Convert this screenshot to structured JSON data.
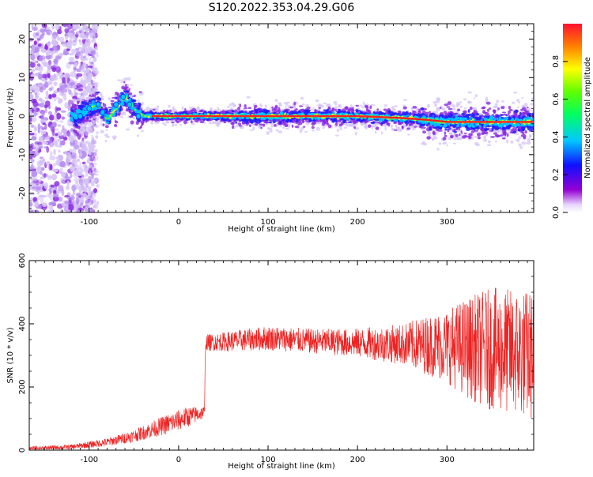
{
  "title": "S120.2022.353.04.29.G06",
  "colors": {
    "snr_line": "#ee2222",
    "band_core": "#ff2020",
    "band_inner": "#00c8ff",
    "band_mid": "#2020ff",
    "band_outer": "#8a2be2",
    "band_halo": "#d6c4f5"
  },
  "chart_data": [
    {
      "type": "heatmap",
      "title": "",
      "xlabel": "Height of straight line (km)",
      "ylabel": "Frequency (Hz)",
      "xlim": [
        -167,
        397
      ],
      "ylim": [
        -25,
        24
      ],
      "xticks": [
        -100,
        0,
        100,
        200,
        300
      ],
      "yticks": [
        -20,
        -10,
        0,
        10,
        20
      ],
      "colorbar": {
        "label": "Normalized spectral amplitude",
        "range": [
          0,
          1
        ],
        "ticks": [
          "0.0",
          "0.2",
          "0.4",
          "0.6",
          "0.8"
        ],
        "colormap": "rainbow (purple → blue → cyan → green → yellow → red)"
      },
      "ridge": {
        "description": "dominant frequency ridge vs height",
        "x": [
          -115,
          -100,
          -90,
          -80,
          -70,
          -60,
          -50,
          -40,
          -30,
          -20,
          0,
          50,
          100,
          150,
          200,
          250,
          280,
          300,
          350,
          395
        ],
        "y": [
          0,
          2,
          3,
          -1,
          2,
          5,
          2,
          0,
          0,
          0,
          0,
          0,
          0,
          0,
          0,
          -0.5,
          -1,
          -1.5,
          -1.5,
          -1.5
        ]
      }
    },
    {
      "type": "line",
      "title": "",
      "xlabel": "Height of straight line (km)",
      "ylabel": "SNR (10 * v/v)",
      "xlim": [
        -167,
        397
      ],
      "ylim": [
        0,
        600
      ],
      "xticks": [
        -100,
        0,
        100,
        200,
        300
      ],
      "yticks": [
        0,
        200,
        400,
        600
      ],
      "envelope": {
        "x": [
          -167,
          -120,
          -80,
          -50,
          -30,
          -10,
          10,
          29,
          30,
          60,
          100,
          150,
          200,
          250,
          300,
          320,
          350,
          397
        ],
        "mean": [
          5,
          10,
          25,
          45,
          65,
          85,
          105,
          120,
          340,
          345,
          355,
          345,
          340,
          335,
          330,
          325,
          320,
          300
        ],
        "spread": [
          5,
          6,
          10,
          15,
          20,
          25,
          25,
          15,
          20,
          25,
          30,
          30,
          35,
          50,
          90,
          120,
          150,
          160
        ]
      }
    }
  ]
}
